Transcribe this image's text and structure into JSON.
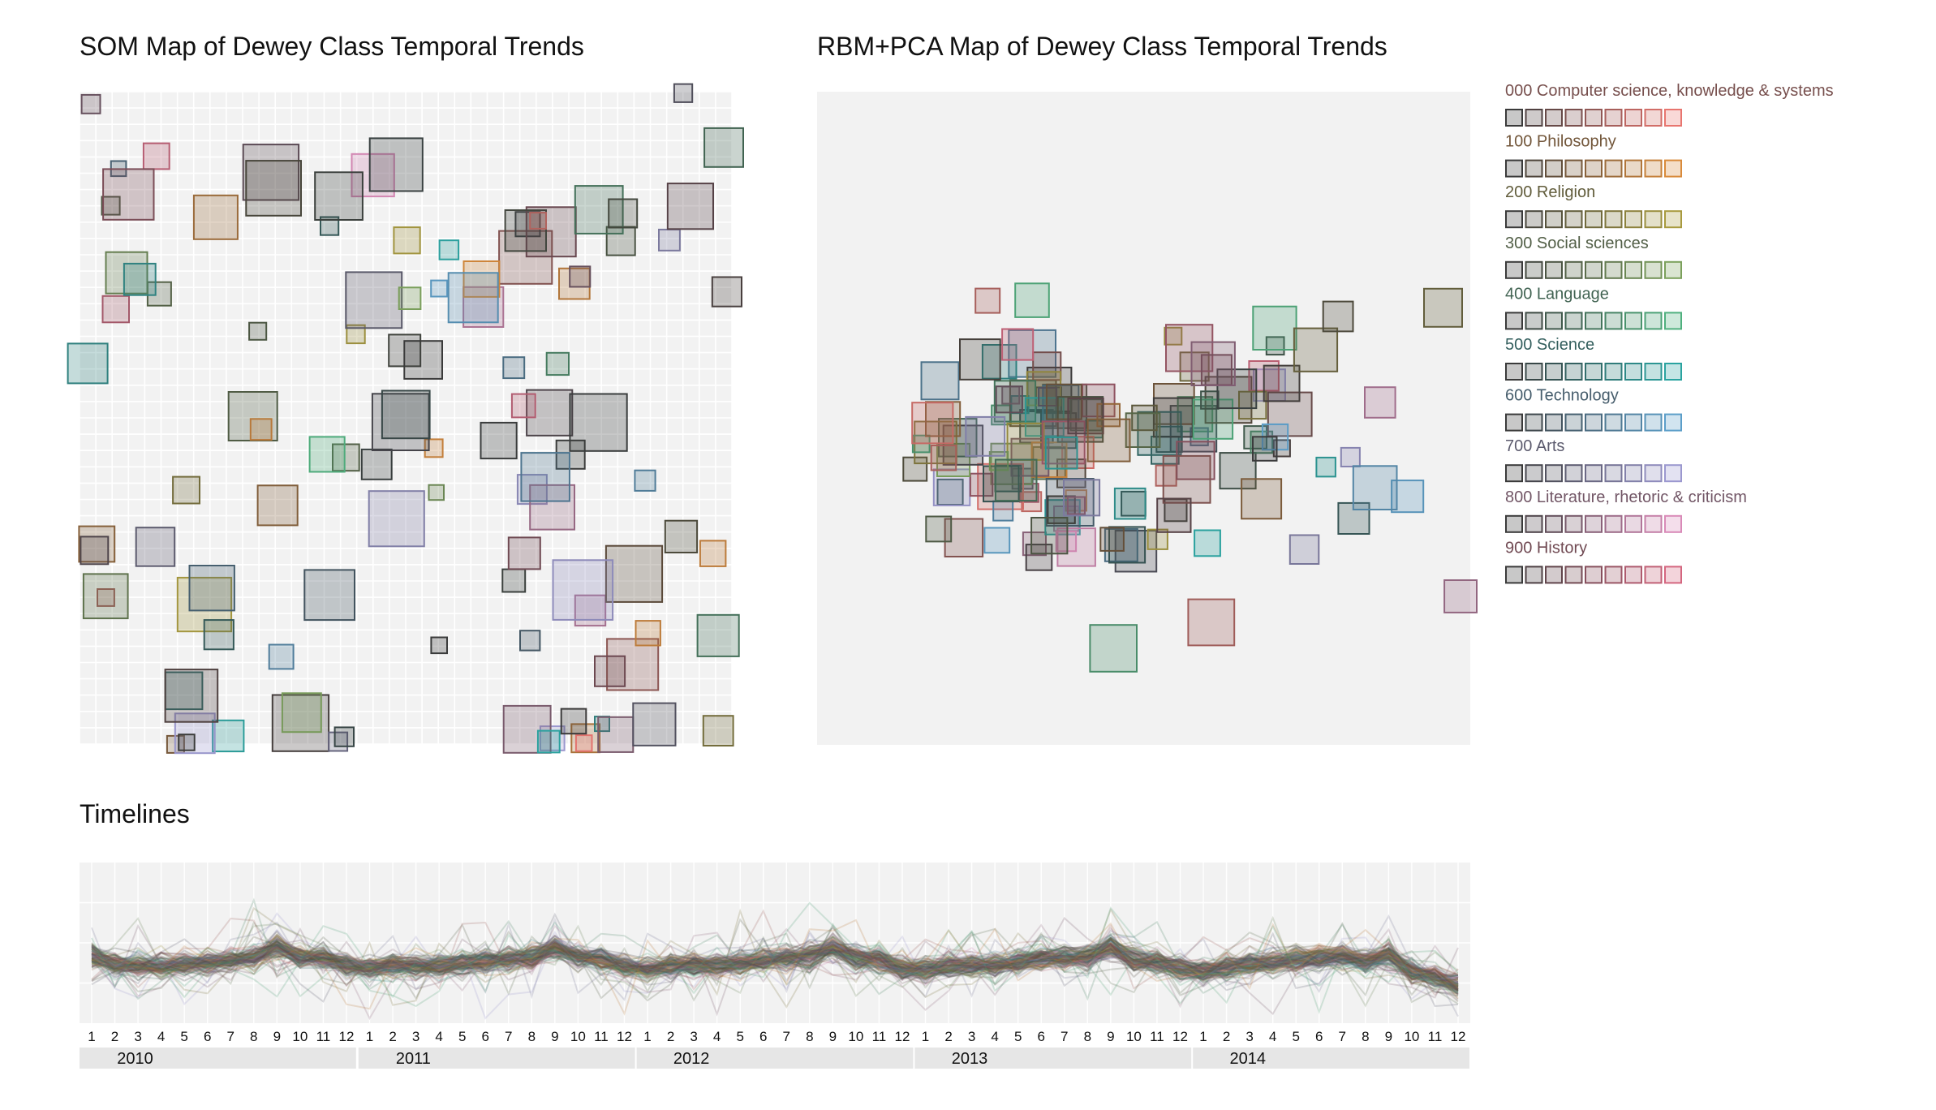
{
  "colors": {
    "panel_bg": "#f2f2f2",
    "som_cell": "#ffffff",
    "classes": {
      "000": "#e8756f",
      "100": "#d98a3a",
      "200": "#a89a3e",
      "300": "#7ba05b",
      "400": "#4fb07e",
      "500": "#2aa3a0",
      "600": "#5b9ec9",
      "700": "#9b98cf",
      "800": "#d98ab8",
      "900": "#d4667f"
    },
    "dark": "#3a3a3a"
  },
  "chart_data": [
    {
      "type": "scatter",
      "title": "SOM Map of Dewey Class Temporal Trends",
      "grid": "on",
      "legend": "none"
    },
    {
      "type": "scatter",
      "title": "RBM+PCA Map of Dewey Class Temporal Trends",
      "grid": "off",
      "legend": "right",
      "legend_entries": [
        {
          "code": "000",
          "label": "000 Computer science, knowledge & systems"
        },
        {
          "code": "100",
          "label": "100 Philosophy"
        },
        {
          "code": "200",
          "label": "200 Religion"
        },
        {
          "code": "300",
          "label": "300 Social sciences"
        },
        {
          "code": "400",
          "label": "400 Language"
        },
        {
          "code": "500",
          "label": "500 Science"
        },
        {
          "code": "600",
          "label": "600 Technology"
        },
        {
          "code": "700",
          "label": "700 Arts"
        },
        {
          "code": "800",
          "label": "800 Literature, rhetoric & criticism"
        },
        {
          "code": "900",
          "label": "900 History"
        }
      ]
    },
    {
      "type": "line",
      "title": "Timelines",
      "x_months": [
        "1",
        "2",
        "3",
        "4",
        "5",
        "6",
        "7",
        "8",
        "9",
        "10",
        "11",
        "12"
      ],
      "x_years": [
        "2010",
        "2011",
        "2012",
        "2013",
        "2014"
      ],
      "grid": "on",
      "legend": "none"
    }
  ]
}
